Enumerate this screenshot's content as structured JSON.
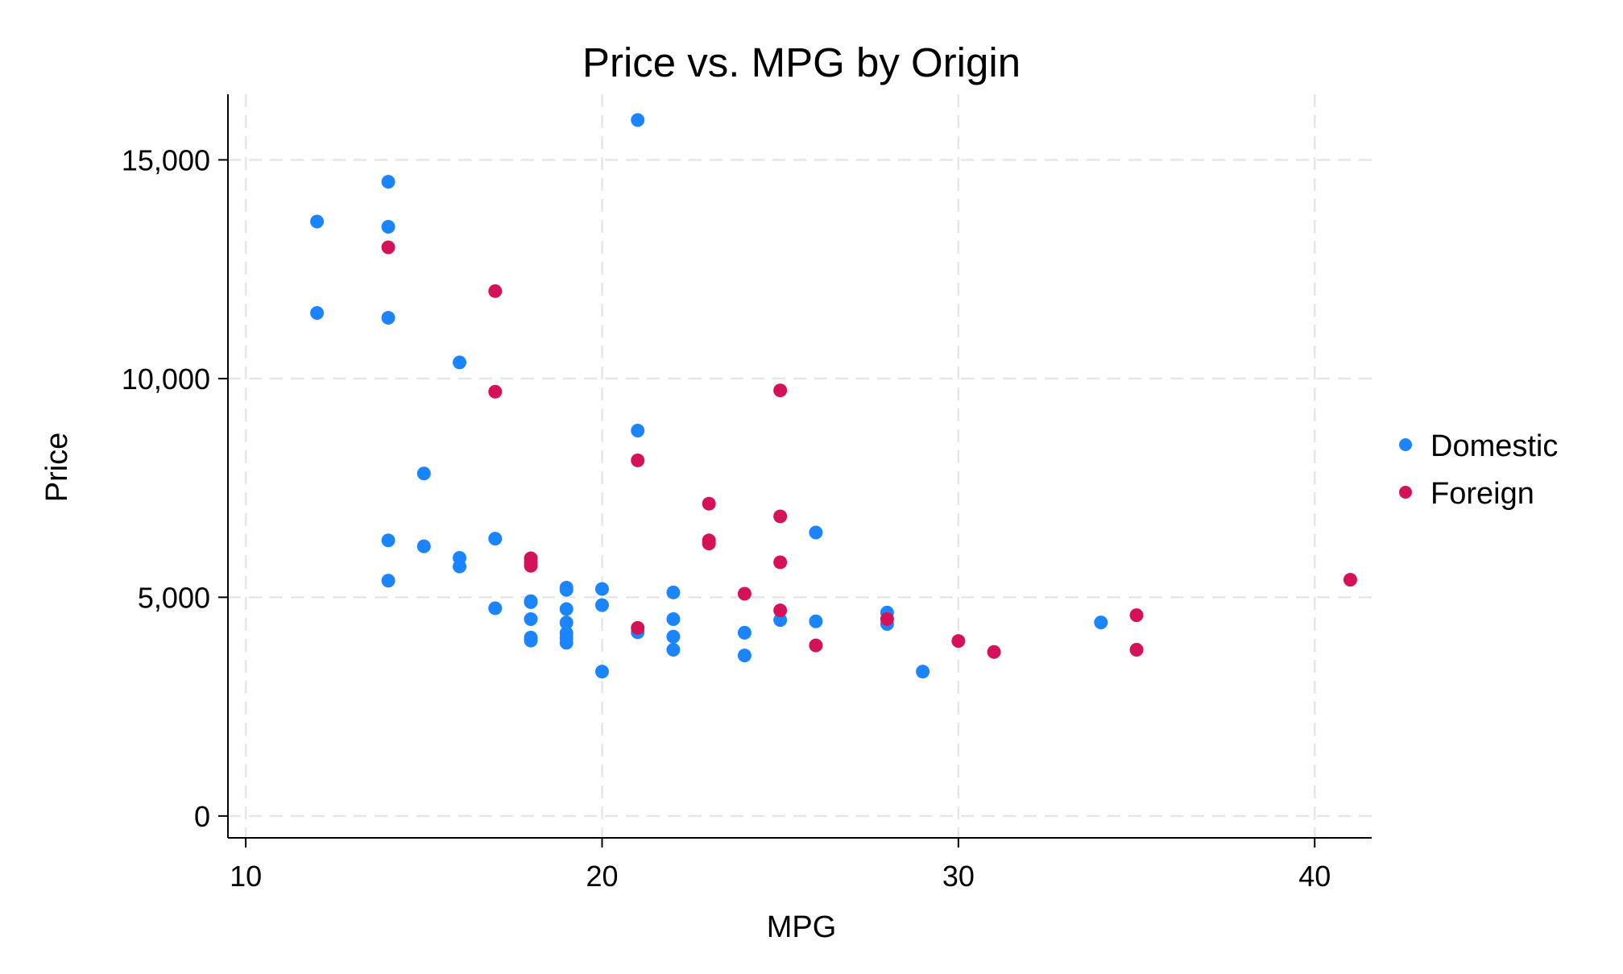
{
  "chart_data": {
    "type": "scatter",
    "title": "Price vs. MPG by Origin",
    "xlabel": "MPG",
    "ylabel": "Price",
    "xlim": [
      9.5,
      41.6
    ],
    "ylim": [
      -500,
      16500
    ],
    "xticks": [
      10,
      20,
      30,
      40
    ],
    "xtick_labels": [
      "10",
      "20",
      "30",
      "40"
    ],
    "yticks": [
      0,
      5000,
      10000,
      15000
    ],
    "ytick_labels": [
      "0",
      "5,000",
      "10,000",
      "15,000"
    ],
    "grid": true,
    "legend_position": "right",
    "series": [
      {
        "name": "Domestic",
        "color": "#1a85ff",
        "points": [
          [
            12,
            13590
          ],
          [
            12,
            11500
          ],
          [
            14,
            14500
          ],
          [
            14,
            13470
          ],
          [
            14,
            11390
          ],
          [
            14,
            6300
          ],
          [
            14,
            5380
          ],
          [
            15,
            7830
          ],
          [
            15,
            6165
          ],
          [
            16,
            10370
          ],
          [
            16,
            5900
          ],
          [
            16,
            5705
          ],
          [
            17,
            6340
          ],
          [
            17,
            4750
          ],
          [
            18,
            4910
          ],
          [
            18,
            4890
          ],
          [
            18,
            4500
          ],
          [
            18,
            4080
          ],
          [
            18,
            4010
          ],
          [
            19,
            5220
          ],
          [
            19,
            5170
          ],
          [
            19,
            4730
          ],
          [
            19,
            4420
          ],
          [
            19,
            4180
          ],
          [
            19,
            4070
          ],
          [
            19,
            3960
          ],
          [
            20,
            5190
          ],
          [
            20,
            4820
          ],
          [
            20,
            3300
          ],
          [
            21,
            15910
          ],
          [
            21,
            8810
          ],
          [
            21,
            4200
          ],
          [
            22,
            5110
          ],
          [
            22,
            4500
          ],
          [
            22,
            4100
          ],
          [
            22,
            3800
          ],
          [
            24,
            4190
          ],
          [
            24,
            3670
          ],
          [
            25,
            4480
          ],
          [
            26,
            6480
          ],
          [
            26,
            4450
          ],
          [
            28,
            4650
          ],
          [
            28,
            4390
          ],
          [
            29,
            3300
          ],
          [
            34,
            4425
          ]
        ]
      },
      {
        "name": "Foreign",
        "color": "#d41159",
        "points": [
          [
            14,
            13000
          ],
          [
            17,
            12000
          ],
          [
            17,
            9700
          ],
          [
            18,
            5890
          ],
          [
            18,
            5800
          ],
          [
            18,
            5720
          ],
          [
            21,
            8130
          ],
          [
            21,
            4300
          ],
          [
            23,
            7140
          ],
          [
            23,
            6300
          ],
          [
            23,
            6230
          ],
          [
            24,
            5080
          ],
          [
            25,
            9730
          ],
          [
            25,
            6850
          ],
          [
            25,
            5800
          ],
          [
            25,
            4700
          ],
          [
            26,
            3900
          ],
          [
            28,
            4500
          ],
          [
            30,
            4000
          ],
          [
            31,
            3750
          ],
          [
            35,
            4590
          ],
          [
            35,
            3800
          ],
          [
            41,
            5400
          ]
        ]
      }
    ]
  }
}
